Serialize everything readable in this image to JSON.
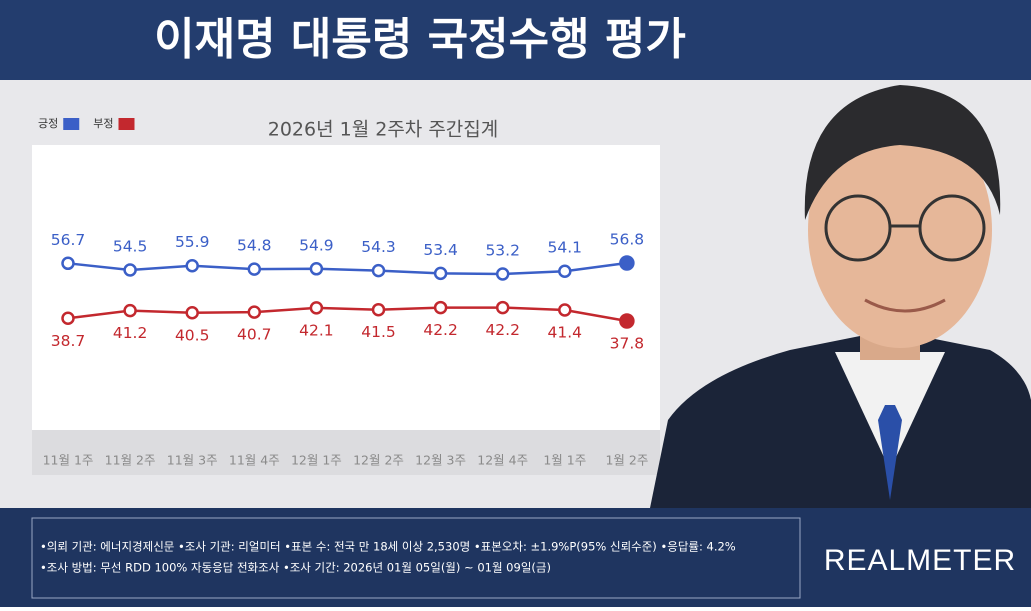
{
  "chart_data": {
    "type": "line",
    "title": "이재명 대통령 국정수행 평가",
    "subtitle": "2026년 1월 2주차 주간집계",
    "categories": [
      "11월 1주",
      "11월 2주",
      "11월 3주",
      "11월 4주",
      "12월 1주",
      "12월 2주",
      "12월 3주",
      "12월 4주",
      "1월 1주",
      "1월 2주"
    ],
    "series": [
      {
        "name": "긍정",
        "color": "#3b5fc7",
        "values": [
          56.7,
          54.5,
          55.9,
          54.8,
          54.9,
          54.3,
          53.4,
          53.2,
          54.1,
          56.8
        ]
      },
      {
        "name": "부정",
        "color": "#c3282e",
        "values": [
          38.7,
          41.2,
          40.5,
          40.7,
          42.1,
          41.5,
          42.2,
          42.2,
          41.4,
          37.8
        ]
      }
    ],
    "legend": "top-left"
  },
  "footer": {
    "lines": [
      "•의뢰 기관: 에너지경제신문 •조사 기관: 리얼미터 •표본 수: 전국 만 18세 이상 2,530명 •표본오차: ±1.9%P(95% 신뢰수준) •응답률: 4.2%",
      "•조사 방법: 무선 RDD 100% 자동응답 전화조사 •조사 기간: 2026년 01월 05일(월) ~ 01월 09일(금)"
    ],
    "brand": "REALMETER"
  }
}
